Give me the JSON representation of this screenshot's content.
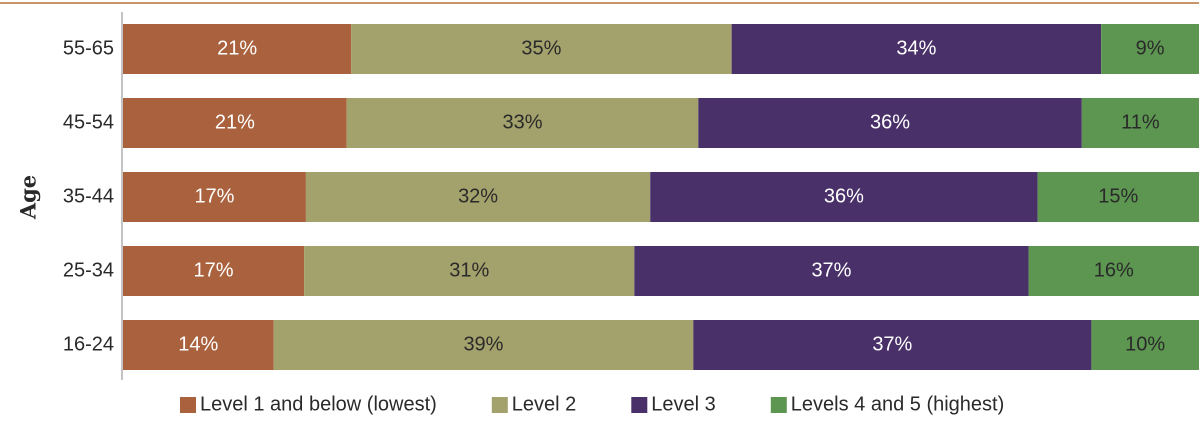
{
  "chart_data": {
    "type": "stacked-bar-horizontal",
    "y_axis_label": "Age",
    "categories": [
      "55-65",
      "45-54",
      "35-44",
      "25-34",
      "16-24"
    ],
    "series": [
      {
        "name": "Level 1 and below (lowest)",
        "color": "#a9623d",
        "label_color": "#ffffff",
        "values": [
          21,
          21,
          17,
          17,
          14
        ],
        "value_labels": [
          "21%",
          "21%",
          "17%",
          "17%",
          "14%"
        ]
      },
      {
        "name": "Level 2",
        "color": "#a4a26c",
        "label_color": "#2a2a2a",
        "values": [
          35,
          33,
          32,
          31,
          39
        ],
        "value_labels": [
          "35%",
          "33%",
          "32%",
          "31%",
          "39%"
        ]
      },
      {
        "name": "Level 3",
        "color": "#4a3069",
        "label_color": "#ffffff",
        "values": [
          34,
          36,
          36,
          37,
          37
        ],
        "value_labels": [
          "34%",
          "36%",
          "36%",
          "37%",
          "37%"
        ]
      },
      {
        "name": "Levels 4 and 5 (highest)",
        "color": "#5c9651",
        "label_color": "#2a2a2a",
        "values": [
          9,
          11,
          15,
          16,
          10
        ],
        "value_labels": [
          "9%",
          "11%",
          "15%",
          "16%",
          "10%"
        ]
      }
    ],
    "legend": "bottom"
  }
}
